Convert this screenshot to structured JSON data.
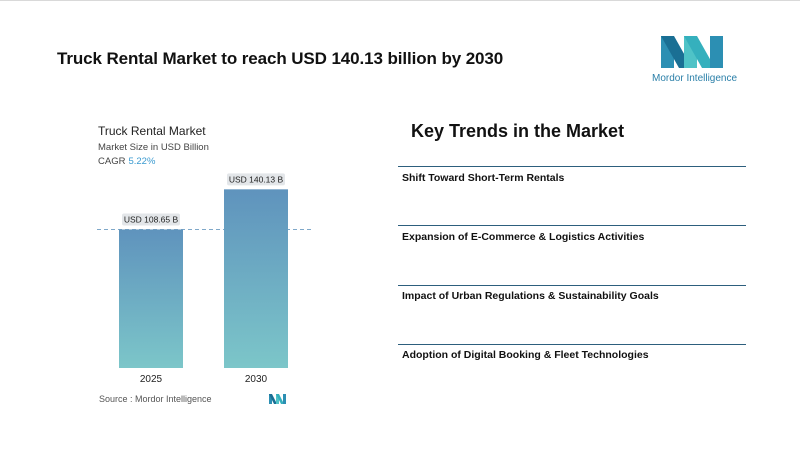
{
  "header": {
    "headline": "Truck Rental Market to reach USD 140.13 billion by 2030",
    "brand_name": "Mordor Intelligence"
  },
  "chart_data": {
    "type": "bar",
    "title": "Truck Rental Market",
    "subtitle": "Market Size in USD Billion",
    "cagr_label": "CAGR",
    "cagr_value": "5.22%",
    "categories": [
      "2025",
      "2030"
    ],
    "values": [
      108.65,
      140.13
    ],
    "data_labels": [
      "USD 108.65 B",
      "USD 140.13 B"
    ],
    "ylim": [
      0,
      160
    ],
    "reference_line": 108.65,
    "source": "Source :  Mordor Intelligence",
    "colors": {
      "bar_top": "#5f93bd",
      "bar_bottom": "#7cc6c9",
      "ref_line": "#7fa8c9",
      "label_bg": "#e3e6e9"
    }
  },
  "trends": {
    "title": "Key Trends in the Market",
    "items": [
      "Shift Toward Short-Term Rentals",
      "Expansion of E-Commerce & Logistics Activities",
      "Impact of Urban Regulations & Sustainability Goals",
      "Adoption of Digital Booking & Fleet Technologies"
    ]
  }
}
